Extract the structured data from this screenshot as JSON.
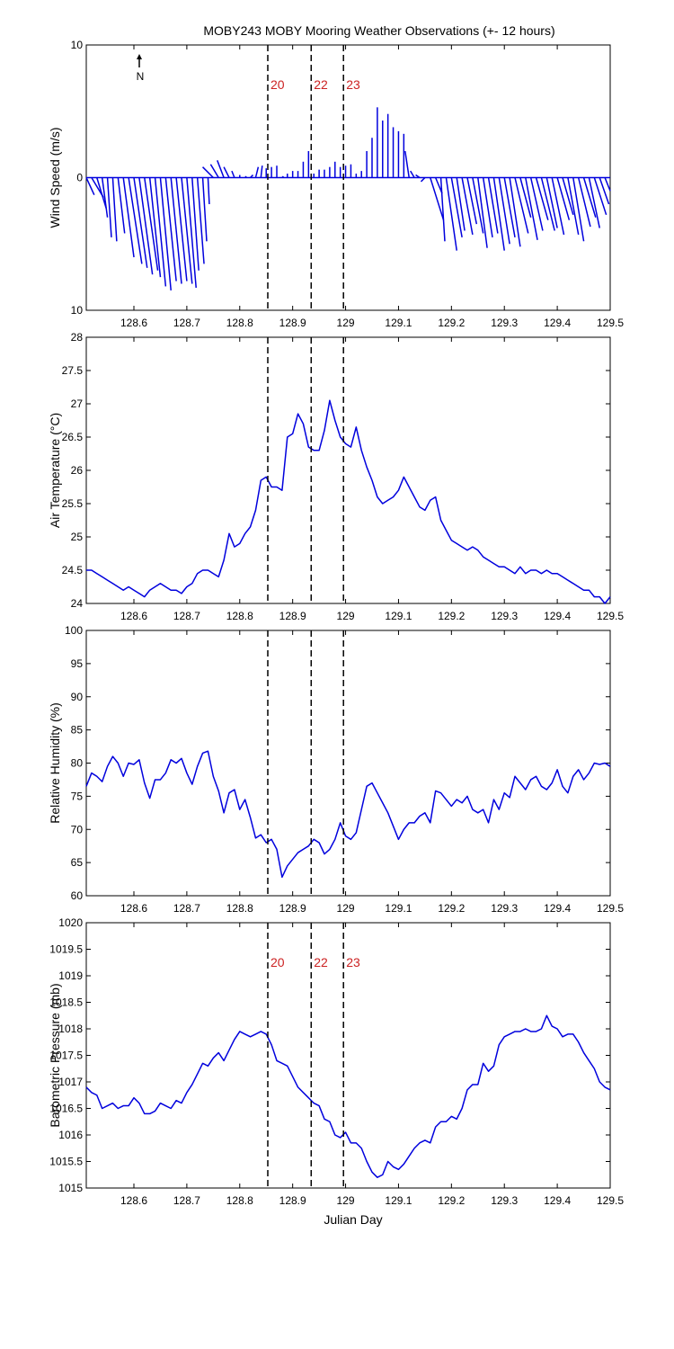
{
  "title": "MOBY243 MOBY Mooring Weather Observations (+- 12 hours)",
  "colors": {
    "series": "#0000dd",
    "event_label": "#cc2222",
    "axis": "#000000"
  },
  "x_axis": {
    "label": "Julian Day",
    "range": [
      128.51,
      129.5
    ],
    "ticks": [
      128.6,
      128.7,
      128.8,
      128.9,
      129.0,
      129.1,
      129.2,
      129.3,
      129.4,
      129.5
    ],
    "tick_labels": [
      "128.6",
      "128.7",
      "128.8",
      "128.9",
      "129",
      "129.1",
      "129.2",
      "129.3",
      "129.4",
      "129.5"
    ]
  },
  "events": [
    {
      "label": "20",
      "x": 128.853
    },
    {
      "label": "22",
      "x": 128.935
    },
    {
      "label": "23",
      "x": 128.996
    }
  ],
  "compass": {
    "label": "N"
  },
  "chart_data": [
    {
      "type": "line",
      "name": "wind",
      "subtype": "wind-stick",
      "ylabel": "Wind Speed (m/s)",
      "ylim": [
        -10,
        10
      ],
      "yticks": [
        -10,
        0,
        10
      ],
      "ytick_labels": [
        "10",
        "0",
        "10"
      ],
      "show_events": true,
      "x": [
        128.51,
        128.52,
        128.53,
        128.54,
        128.55,
        128.56,
        128.57,
        128.58,
        128.59,
        128.6,
        128.61,
        128.62,
        128.63,
        128.64,
        128.65,
        128.66,
        128.67,
        128.68,
        128.69,
        128.7,
        128.71,
        128.72,
        128.73,
        128.74,
        128.75,
        128.76,
        128.77,
        128.78,
        128.79,
        128.8,
        128.81,
        128.82,
        128.83,
        128.84,
        128.85,
        128.86,
        128.87,
        128.88,
        128.89,
        128.9,
        128.91,
        128.92,
        128.93,
        128.94,
        128.95,
        128.96,
        128.97,
        128.98,
        128.99,
        129.0,
        129.01,
        129.02,
        129.03,
        129.04,
        129.05,
        129.06,
        129.07,
        129.08,
        129.09,
        129.1,
        129.11,
        129.12,
        129.13,
        129.14,
        129.15,
        129.16,
        129.17,
        129.18,
        129.19,
        129.2,
        129.21,
        129.22,
        129.23,
        129.24,
        129.25,
        129.26,
        129.27,
        129.28,
        129.29,
        129.3,
        129.31,
        129.32,
        129.33,
        129.34,
        129.35,
        129.36,
        129.37,
        129.38,
        129.39,
        129.4,
        129.41,
        129.42,
        129.43,
        129.44,
        129.45,
        129.46,
        129.47,
        129.48,
        129.49
      ],
      "u": [
        0.6,
        0.9,
        0.7,
        0.4,
        0.3,
        0.3,
        0.5,
        0.8,
        1.0,
        1.0,
        1.0,
        1.0,
        0.8,
        0.8,
        0.8,
        0.8,
        0.8,
        0.8,
        0.8,
        0.7,
        0.5,
        0.5,
        0.3,
        0.1,
        -0.8,
        -0.6,
        -0.5,
        -0.4,
        -0.2,
        0.0,
        0.1,
        0.2,
        0.2,
        0.1,
        0.0,
        0.0,
        0.0,
        0.1,
        0.0,
        0.0,
        0.0,
        0.0,
        0.0,
        0.0,
        0.0,
        0.0,
        0.0,
        0.0,
        0.0,
        0.0,
        0.0,
        0.0,
        0.0,
        0.0,
        0.0,
        0.0,
        0.0,
        0.0,
        0.0,
        0.0,
        0.0,
        -0.3,
        -0.3,
        -0.3,
        -0.3,
        1.0,
        0.5,
        0.3,
        0.8,
        0.8,
        0.6,
        0.8,
        0.7,
        0.8,
        0.7,
        0.7,
        0.7,
        0.8,
        0.8,
        0.8,
        0.8,
        1.0,
        0.8,
        0.9,
        0.9,
        0.9,
        1.0,
        0.8,
        0.9,
        0.9,
        0.8,
        0.8,
        0.8,
        0.9,
        0.9,
        0.8,
        0.9,
        0.7,
        0.8
      ],
      "v": [
        -1.3,
        -1.5,
        -2.3,
        -3.0,
        -4.5,
        -4.8,
        -4.2,
        -6.0,
        -6.5,
        -6.8,
        -7.3,
        -7.0,
        -7.5,
        -8.2,
        -8.5,
        -7.8,
        -8.0,
        -7.8,
        -8.0,
        -8.3,
        -7.0,
        -6.5,
        -4.8,
        -2.0,
        0.8,
        1.0,
        1.3,
        0.8,
        0.5,
        0.2,
        0.1,
        0.2,
        0.8,
        0.9,
        0.7,
        0.8,
        0.9,
        0.1,
        0.3,
        0.5,
        0.5,
        1.2,
        2.0,
        0.3,
        0.6,
        0.6,
        0.8,
        1.2,
        0.8,
        0.9,
        1.0,
        0.3,
        0.5,
        2.0,
        3.0,
        5.3,
        4.3,
        4.8,
        3.8,
        3.5,
        3.3,
        2.0,
        0.5,
        0.2,
        -0.3,
        -3.2,
        -1.2,
        -4.8,
        -5.5,
        -4.5,
        -4.0,
        -4.3,
        -3.5,
        -4.2,
        -5.3,
        -4.5,
        -4.2,
        -5.5,
        -5.0,
        -4.5,
        -5.2,
        -4.2,
        -3.0,
        -4.7,
        -4.0,
        -3.2,
        -4.0,
        -3.8,
        -4.3,
        -3.2,
        -2.8,
        -4.3,
        -4.8,
        -3.7,
        -3.0,
        -3.8,
        -2.8,
        -2.0,
        -1.0
      ]
    },
    {
      "type": "line",
      "name": "air_temperature",
      "ylabel": "Air Temperature (°C)",
      "ylim": [
        24,
        28
      ],
      "yticks": [
        24,
        24.5,
        25,
        25.5,
        26,
        26.5,
        27,
        27.5,
        28
      ],
      "ytick_labels": [
        "24",
        "24.5",
        "25",
        "25.5",
        "26",
        "26.5",
        "27",
        "27.5",
        "28"
      ],
      "show_events": false,
      "x": [
        128.51,
        128.52,
        128.53,
        128.54,
        128.55,
        128.56,
        128.57,
        128.58,
        128.59,
        128.6,
        128.61,
        128.62,
        128.63,
        128.64,
        128.65,
        128.66,
        128.67,
        128.68,
        128.69,
        128.7,
        128.71,
        128.72,
        128.73,
        128.74,
        128.75,
        128.76,
        128.77,
        128.78,
        128.79,
        128.8,
        128.81,
        128.82,
        128.83,
        128.84,
        128.85,
        128.86,
        128.87,
        128.88,
        128.89,
        128.9,
        128.91,
        128.92,
        128.93,
        128.94,
        128.95,
        128.96,
        128.97,
        128.98,
        128.99,
        129.0,
        129.01,
        129.02,
        129.03,
        129.04,
        129.05,
        129.06,
        129.07,
        129.08,
        129.09,
        129.1,
        129.11,
        129.12,
        129.13,
        129.14,
        129.15,
        129.16,
        129.17,
        129.18,
        129.19,
        129.2,
        129.21,
        129.22,
        129.23,
        129.24,
        129.25,
        129.26,
        129.27,
        129.28,
        129.29,
        129.3,
        129.31,
        129.32,
        129.33,
        129.34,
        129.35,
        129.36,
        129.37,
        129.38,
        129.39,
        129.4,
        129.41,
        129.42,
        129.43,
        129.44,
        129.45,
        129.46,
        129.47,
        129.48,
        129.49,
        129.5
      ],
      "y": [
        24.5,
        24.5,
        24.45,
        24.4,
        24.35,
        24.3,
        24.25,
        24.2,
        24.25,
        24.2,
        24.15,
        24.1,
        24.2,
        24.25,
        24.3,
        24.25,
        24.2,
        24.2,
        24.15,
        24.25,
        24.3,
        24.45,
        24.5,
        24.5,
        24.45,
        24.4,
        24.65,
        25.05,
        24.85,
        24.9,
        25.05,
        25.15,
        25.4,
        25.85,
        25.9,
        25.75,
        25.75,
        25.7,
        26.5,
        26.55,
        26.85,
        26.7,
        26.35,
        26.3,
        26.3,
        26.6,
        27.05,
        26.75,
        26.5,
        26.4,
        26.35,
        26.65,
        26.3,
        26.05,
        25.85,
        25.6,
        25.5,
        25.55,
        25.6,
        25.7,
        25.9,
        25.75,
        25.6,
        25.45,
        25.4,
        25.55,
        25.6,
        25.25,
        25.1,
        24.95,
        24.9,
        24.85,
        24.8,
        24.85,
        24.8,
        24.7,
        24.65,
        24.6,
        24.55,
        24.55,
        24.5,
        24.45,
        24.55,
        24.45,
        24.5,
        24.5,
        24.45,
        24.5,
        24.45,
        24.45,
        24.4,
        24.35,
        24.3,
        24.25,
        24.2,
        24.2,
        24.1,
        24.1,
        24.0,
        24.1
      ]
    },
    {
      "type": "line",
      "name": "relative_humidity",
      "ylabel": "Relative Humidity (%)",
      "ylim": [
        60,
        100
      ],
      "yticks": [
        60,
        65,
        70,
        75,
        80,
        85,
        90,
        95,
        100
      ],
      "ytick_labels": [
        "60",
        "65",
        "70",
        "75",
        "80",
        "85",
        "90",
        "95",
        "100"
      ],
      "show_events": false,
      "x": [
        128.51,
        128.52,
        128.53,
        128.54,
        128.55,
        128.56,
        128.57,
        128.58,
        128.59,
        128.6,
        128.61,
        128.62,
        128.63,
        128.64,
        128.65,
        128.66,
        128.67,
        128.68,
        128.69,
        128.7,
        128.71,
        128.72,
        128.73,
        128.74,
        128.75,
        128.76,
        128.77,
        128.78,
        128.79,
        128.8,
        128.81,
        128.82,
        128.83,
        128.84,
        128.85,
        128.86,
        128.87,
        128.88,
        128.89,
        128.9,
        128.91,
        128.92,
        128.93,
        128.94,
        128.95,
        128.96,
        128.97,
        128.98,
        128.99,
        129.0,
        129.01,
        129.02,
        129.03,
        129.04,
        129.05,
        129.06,
        129.07,
        129.08,
        129.09,
        129.1,
        129.11,
        129.12,
        129.13,
        129.14,
        129.15,
        129.16,
        129.17,
        129.18,
        129.19,
        129.2,
        129.21,
        129.22,
        129.23,
        129.24,
        129.25,
        129.26,
        129.27,
        129.28,
        129.29,
        129.3,
        129.31,
        129.32,
        129.33,
        129.34,
        129.35,
        129.36,
        129.37,
        129.38,
        129.39,
        129.4,
        129.41,
        129.42,
        129.43,
        129.44,
        129.45,
        129.46,
        129.47,
        129.48,
        129.49,
        129.5
      ],
      "y": [
        76.5,
        78.5,
        78.0,
        77.2,
        79.5,
        81.0,
        80.0,
        78.0,
        80.0,
        79.8,
        80.5,
        77.0,
        74.7,
        77.5,
        77.5,
        78.5,
        80.5,
        80.0,
        80.7,
        78.5,
        76.8,
        79.5,
        81.5,
        81.8,
        78.0,
        75.8,
        72.5,
        75.5,
        76.0,
        73.0,
        74.5,
        71.8,
        68.7,
        69.2,
        68.0,
        68.5,
        67.0,
        62.8,
        64.5,
        65.5,
        66.5,
        67.0,
        67.5,
        68.5,
        68.0,
        66.3,
        67.0,
        68.5,
        71.0,
        69.0,
        68.5,
        69.5,
        73.0,
        76.5,
        77.0,
        75.5,
        74.0,
        72.5,
        70.5,
        68.5,
        70.0,
        71.0,
        71.0,
        72.0,
        72.5,
        71.0,
        75.8,
        75.5,
        74.5,
        73.5,
        74.5,
        74.0,
        75.0,
        73.0,
        72.5,
        73.0,
        71.0,
        74.5,
        73.0,
        75.5,
        74.8,
        78.0,
        77.0,
        76.0,
        77.5,
        78.0,
        76.5,
        76.0,
        77.0,
        79.0,
        76.5,
        75.5,
        78.0,
        79.0,
        77.5,
        78.5,
        80.0,
        79.8,
        80.0,
        79.5
      ]
    },
    {
      "type": "line",
      "name": "barometric_pressure",
      "ylabel": "Barometric Pressure (mb)",
      "xlabel": "Julian Day",
      "ylim": [
        1015,
        1020
      ],
      "yticks": [
        1015,
        1015.5,
        1016,
        1016.5,
        1017,
        1017.5,
        1018,
        1018.5,
        1019,
        1019.5,
        1020
      ],
      "ytick_labels": [
        "1015",
        "1015.5",
        "1016",
        "1016.5",
        "1017",
        "1017.5",
        "1018",
        "1018.5",
        "1019",
        "1019.5",
        "1020"
      ],
      "show_events": true,
      "x": [
        128.51,
        128.52,
        128.53,
        128.54,
        128.55,
        128.56,
        128.57,
        128.58,
        128.59,
        128.6,
        128.61,
        128.62,
        128.63,
        128.64,
        128.65,
        128.66,
        128.67,
        128.68,
        128.69,
        128.7,
        128.71,
        128.72,
        128.73,
        128.74,
        128.75,
        128.76,
        128.77,
        128.78,
        128.79,
        128.8,
        128.81,
        128.82,
        128.83,
        128.84,
        128.85,
        128.86,
        128.87,
        128.88,
        128.89,
        128.9,
        128.91,
        128.92,
        128.93,
        128.94,
        128.95,
        128.96,
        128.97,
        128.98,
        128.99,
        129.0,
        129.01,
        129.02,
        129.03,
        129.04,
        129.05,
        129.06,
        129.07,
        129.08,
        129.09,
        129.1,
        129.11,
        129.12,
        129.13,
        129.14,
        129.15,
        129.16,
        129.17,
        129.18,
        129.19,
        129.2,
        129.21,
        129.22,
        129.23,
        129.24,
        129.25,
        129.26,
        129.27,
        129.28,
        129.29,
        129.3,
        129.31,
        129.32,
        129.33,
        129.34,
        129.35,
        129.36,
        129.37,
        129.38,
        129.39,
        129.4,
        129.41,
        129.42,
        129.43,
        129.44,
        129.45,
        129.46,
        129.47,
        129.48,
        129.49,
        129.5
      ],
      "y": [
        1016.9,
        1016.8,
        1016.75,
        1016.5,
        1016.55,
        1016.6,
        1016.5,
        1016.55,
        1016.55,
        1016.7,
        1016.6,
        1016.4,
        1016.4,
        1016.45,
        1016.6,
        1016.55,
        1016.5,
        1016.65,
        1016.6,
        1016.8,
        1016.95,
        1017.15,
        1017.35,
        1017.3,
        1017.45,
        1017.55,
        1017.4,
        1017.6,
        1017.8,
        1017.95,
        1017.9,
        1017.85,
        1017.9,
        1017.95,
        1017.9,
        1017.7,
        1017.4,
        1017.35,
        1017.3,
        1017.1,
        1016.9,
        1016.8,
        1016.7,
        1016.6,
        1016.55,
        1016.3,
        1016.25,
        1016.0,
        1015.95,
        1016.05,
        1015.85,
        1015.85,
        1015.75,
        1015.5,
        1015.3,
        1015.2,
        1015.25,
        1015.5,
        1015.4,
        1015.35,
        1015.45,
        1015.6,
        1015.75,
        1015.85,
        1015.9,
        1015.85,
        1016.15,
        1016.25,
        1016.25,
        1016.35,
        1016.3,
        1016.5,
        1016.85,
        1016.95,
        1016.95,
        1017.35,
        1017.2,
        1017.3,
        1017.7,
        1017.85,
        1017.9,
        1017.95,
        1017.95,
        1018.0,
        1017.95,
        1017.95,
        1018.0,
        1018.25,
        1018.05,
        1018.0,
        1017.85,
        1017.9,
        1017.9,
        1017.75,
        1017.55,
        1017.4,
        1017.25,
        1017.0,
        1016.9,
        1016.85
      ]
    }
  ]
}
